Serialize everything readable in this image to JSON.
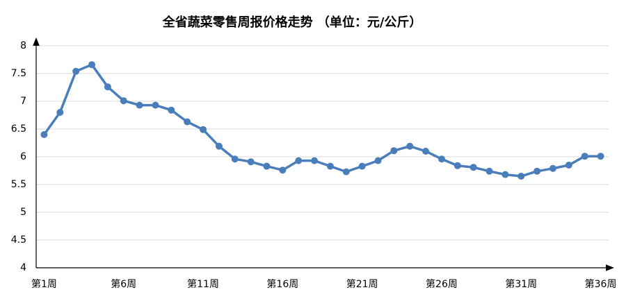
{
  "chart_data": {
    "type": "line",
    "title": "全省蔬菜零售周报价格走势   （单位：元/公斤）",
    "categories": [
      "第1周",
      null,
      null,
      null,
      null,
      "第6周",
      null,
      null,
      null,
      null,
      "第11周",
      null,
      null,
      null,
      null,
      "第16周",
      null,
      null,
      null,
      null,
      "第21周",
      null,
      null,
      null,
      null,
      "第26周",
      null,
      null,
      null,
      null,
      "第31周",
      null,
      null,
      null,
      null,
      "第36周"
    ],
    "values": [
      6.4,
      6.8,
      7.54,
      7.66,
      7.26,
      7.01,
      6.93,
      6.93,
      6.84,
      6.63,
      6.49,
      6.19,
      5.96,
      5.91,
      5.83,
      5.76,
      5.93,
      5.93,
      5.83,
      5.73,
      5.83,
      5.93,
      6.11,
      6.19,
      6.1,
      5.96,
      5.84,
      5.81,
      5.74,
      5.68,
      5.65,
      5.74,
      5.79,
      5.85,
      6.01,
      6.01
    ],
    "color": "#4a7ebb",
    "ylim": [
      4,
      8
    ],
    "yticks": [
      4,
      4.5,
      5,
      5.5,
      6,
      6.5,
      7,
      7.5,
      8
    ],
    "grid": true
  }
}
